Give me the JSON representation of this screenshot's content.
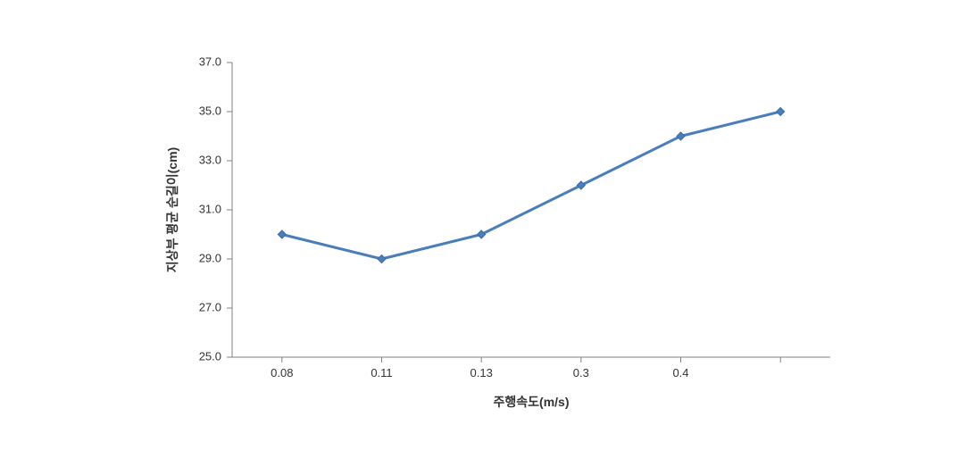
{
  "chart": {
    "type": "line",
    "xlabel": "주행속도(m/s)",
    "ylabel": "지상부 평균 순길이(cm)",
    "label_fontsize": 14,
    "tick_fontsize": 13,
    "background_color": "#ffffff",
    "plot_border_color": "#808080",
    "x_categories": [
      "0.08",
      "0.11",
      "0.13",
      "0.3",
      "0.4",
      ""
    ],
    "y_ticks": [
      "25.0",
      "27.0",
      "29.0",
      "31.0",
      "33.0",
      "35.0",
      "37.0"
    ],
    "ylim": [
      25.0,
      37.0
    ],
    "series": {
      "values": [
        30.0,
        29.0,
        30.0,
        32.0,
        34.0,
        35.0
      ],
      "line_color": "#4a7ebb",
      "line_width": 3,
      "marker_shape": "diamond",
      "marker_size": 9,
      "marker_fill": "#4a7ebb",
      "marker_stroke": "#3a6da5"
    },
    "tick_mark_color": "#808080",
    "tick_mark_length": 6
  }
}
